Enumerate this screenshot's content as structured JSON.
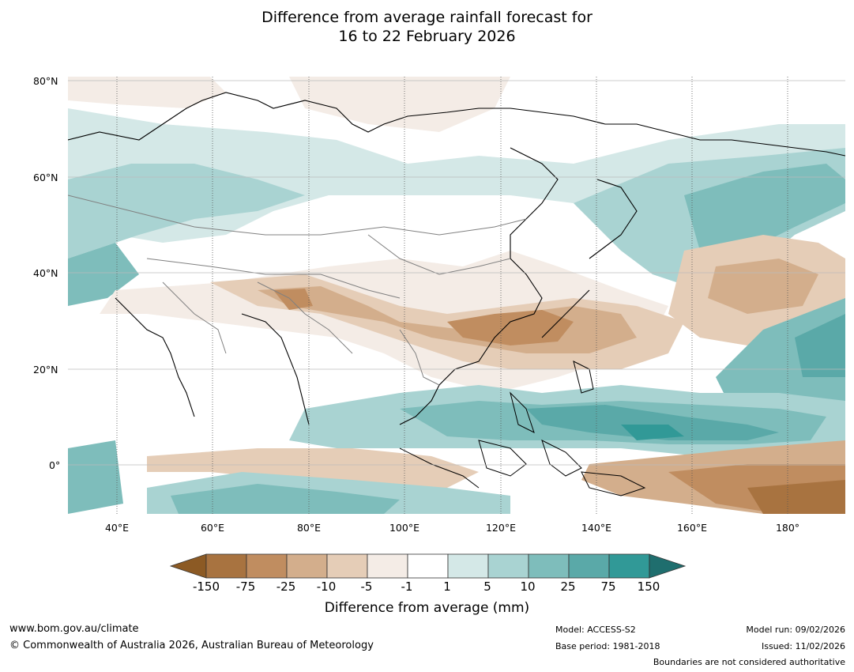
{
  "title": {
    "line1": "Difference from average rainfall forecast for",
    "line2": "16 to 22 February 2026"
  },
  "map": {
    "lat_labels": [
      "80°N",
      "60°N",
      "40°N",
      "20°N",
      "0°"
    ],
    "lon_labels": [
      "40°E",
      "60°E",
      "80°E",
      "100°E",
      "120°E",
      "140°E",
      "160°E",
      "180°"
    ]
  },
  "legend": {
    "title": "Difference from average (mm)",
    "ticks": [
      "-150",
      "-75",
      "-25",
      "-10",
      "-5",
      "-1",
      "1",
      "5",
      "10",
      "25",
      "75",
      "150"
    ],
    "colors": [
      "#8c5a24",
      "#a87340",
      "#c08d60",
      "#d3ae8c",
      "#e5cdb7",
      "#f4ece6",
      "#ffffff",
      "#d4e8e7",
      "#a9d3d2",
      "#7ebdbb",
      "#5aa9a8",
      "#319997",
      "#1f6e6e"
    ]
  },
  "footer": {
    "website": "www.bom.gov.au/climate",
    "copyright": "© Commonwealth of Australia 2026, Australian Bureau of Meteorology",
    "model": "Model: ACCESS-S2",
    "base_period": "Base period: 1981-2018",
    "model_run": "Model run: 09/02/2026",
    "issued": "Issued: 11/02/2026",
    "disclaimer": "Boundaries are not considered authoritative"
  }
}
